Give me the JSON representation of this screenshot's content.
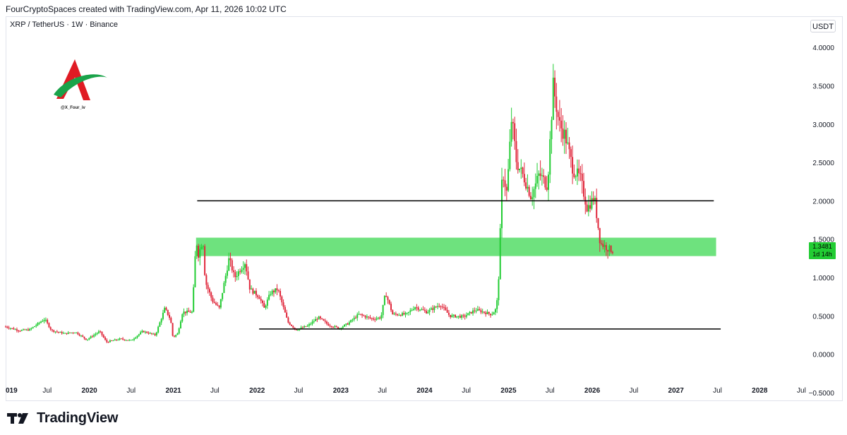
{
  "header": {
    "attribution": "FourCryptoSpaces created with TradingView.com, Apr 11, 2026 10:02 UTC"
  },
  "symbol_line": "XRP / TetherUS · 1W · Binance",
  "currency_button": "USDT",
  "watermark": {
    "handle": "@X_Four_iv"
  },
  "brand": {
    "name": "TradingView"
  },
  "price_badge": {
    "price": "1.3481",
    "countdown": "1d 14h"
  },
  "colors": {
    "up": "#22cc33",
    "down": "#e0283c",
    "zone": "#6ee27e",
    "line": "#000000"
  },
  "chart_data": {
    "type": "candlestick",
    "title": "",
    "interval": "1W",
    "ylim": [
      -0.5,
      4.25
    ],
    "yticks": [
      "4.0000",
      "3.5000",
      "3.0000",
      "2.5000",
      "2.0000",
      "1.5000",
      "1.0000",
      "0.5000",
      "0.0000",
      "−0.5000"
    ],
    "ytick_values": [
      4.0,
      3.5,
      3.0,
      2.5,
      2.0,
      1.5,
      1.0,
      0.5,
      0.0,
      -0.5
    ],
    "x_range": [
      "2019-01-01",
      "2028-07-15"
    ],
    "xticks": [
      {
        "label": "019",
        "date": "2019-01-01",
        "year": true
      },
      {
        "label": "Jul",
        "date": "2019-07-01",
        "year": false
      },
      {
        "label": "2020",
        "date": "2020-01-01",
        "year": true
      },
      {
        "label": "Jul",
        "date": "2020-07-01",
        "year": false
      },
      {
        "label": "2021",
        "date": "2021-01-01",
        "year": true
      },
      {
        "label": "Jul",
        "date": "2021-07-01",
        "year": false
      },
      {
        "label": "2022",
        "date": "2022-01-01",
        "year": true
      },
      {
        "label": "Jul",
        "date": "2022-07-01",
        "year": false
      },
      {
        "label": "2023",
        "date": "2023-01-01",
        "year": true
      },
      {
        "label": "Jul",
        "date": "2023-07-01",
        "year": false
      },
      {
        "label": "2024",
        "date": "2024-01-01",
        "year": true
      },
      {
        "label": "Jul",
        "date": "2024-07-01",
        "year": false
      },
      {
        "label": "2025",
        "date": "2025-01-01",
        "year": true
      },
      {
        "label": "Jul",
        "date": "2025-07-01",
        "year": false
      },
      {
        "label": "2026",
        "date": "2026-01-01",
        "year": true
      },
      {
        "label": "Jul",
        "date": "2026-07-01",
        "year": false
      },
      {
        "label": "2027",
        "date": "2027-01-01",
        "year": true
      },
      {
        "label": "Jul",
        "date": "2027-07-01",
        "year": false
      },
      {
        "label": "2028",
        "date": "2028-01-01",
        "year": true
      },
      {
        "label": "Jul",
        "date": "2028-07-01",
        "year": false
      }
    ],
    "close_path": [
      [
        "2019-01-01",
        0.36
      ],
      [
        "2019-03-01",
        0.31
      ],
      [
        "2019-04-15",
        0.32
      ],
      [
        "2019-06-20",
        0.46
      ],
      [
        "2019-07-20",
        0.31
      ],
      [
        "2019-09-15",
        0.27
      ],
      [
        "2019-11-01",
        0.29
      ],
      [
        "2019-12-20",
        0.19
      ],
      [
        "2020-02-15",
        0.3
      ],
      [
        "2020-03-15",
        0.16
      ],
      [
        "2020-05-15",
        0.2
      ],
      [
        "2020-07-01",
        0.18
      ],
      [
        "2020-08-20",
        0.3
      ],
      [
        "2020-10-15",
        0.25
      ],
      [
        "2020-11-25",
        0.6
      ],
      [
        "2020-12-20",
        0.45
      ],
      [
        "2020-12-30",
        0.22
      ],
      [
        "2021-01-20",
        0.27
      ],
      [
        "2021-02-10",
        0.55
      ],
      [
        "2021-03-25",
        0.55
      ],
      [
        "2021-04-10",
        1.5
      ],
      [
        "2021-04-20",
        1.3
      ],
      [
        "2021-05-10",
        1.5
      ],
      [
        "2021-05-20",
        0.95
      ],
      [
        "2021-06-20",
        0.7
      ],
      [
        "2021-07-20",
        0.6
      ],
      [
        "2021-09-01",
        1.25
      ],
      [
        "2021-09-25",
        1.0
      ],
      [
        "2021-11-10",
        1.2
      ],
      [
        "2021-12-01",
        0.85
      ],
      [
        "2022-01-10",
        0.75
      ],
      [
        "2022-02-01",
        0.6
      ],
      [
        "2022-03-01",
        0.8
      ],
      [
        "2022-04-01",
        0.85
      ],
      [
        "2022-05-15",
        0.42
      ],
      [
        "2022-06-20",
        0.32
      ],
      [
        "2022-08-10",
        0.37
      ],
      [
        "2022-09-25",
        0.48
      ],
      [
        "2022-11-10",
        0.38
      ],
      [
        "2022-12-25",
        0.34
      ],
      [
        "2023-02-01",
        0.4
      ],
      [
        "2023-03-20",
        0.52
      ],
      [
        "2023-05-20",
        0.46
      ],
      [
        "2023-06-25",
        0.48
      ],
      [
        "2023-07-15",
        0.8
      ],
      [
        "2023-08-15",
        0.52
      ],
      [
        "2023-10-15",
        0.52
      ],
      [
        "2023-11-20",
        0.62
      ],
      [
        "2024-01-10",
        0.55
      ],
      [
        "2024-03-10",
        0.65
      ],
      [
        "2024-04-20",
        0.5
      ],
      [
        "2024-06-20",
        0.49
      ],
      [
        "2024-08-10",
        0.58
      ],
      [
        "2024-10-20",
        0.52
      ],
      [
        "2024-11-10",
        0.6
      ],
      [
        "2024-11-20",
        1.05
      ],
      [
        "2024-12-05",
        2.4
      ],
      [
        "2024-12-25",
        2.1
      ],
      [
        "2025-01-15",
        3.1
      ],
      [
        "2025-02-05",
        2.5
      ],
      [
        "2025-03-10",
        2.3
      ],
      [
        "2025-04-10",
        2.05
      ],
      [
        "2025-05-15",
        2.35
      ],
      [
        "2025-06-20",
        2.2
      ],
      [
        "2025-07-15",
        3.5
      ],
      [
        "2025-08-10",
        3.0
      ],
      [
        "2025-09-05",
        2.85
      ],
      [
        "2025-10-10",
        2.4
      ],
      [
        "2025-11-10",
        2.3
      ],
      [
        "2025-12-10",
        1.9
      ],
      [
        "2026-01-10",
        2.05
      ],
      [
        "2026-02-05",
        1.45
      ],
      [
        "2026-03-10",
        1.38
      ],
      [
        "2026-04-05",
        1.3481
      ]
    ],
    "price_levels": [
      {
        "value": 2.0,
        "from": "2021-04-15",
        "to": "2027-06-15"
      },
      {
        "value": 0.33,
        "from": "2022-01-10",
        "to": "2027-07-15"
      }
    ],
    "zones": [
      {
        "from_value": 1.28,
        "to_value": 1.52,
        "from": "2021-04-10",
        "to": "2027-06-25"
      }
    ],
    "last_price": 1.3481
  }
}
